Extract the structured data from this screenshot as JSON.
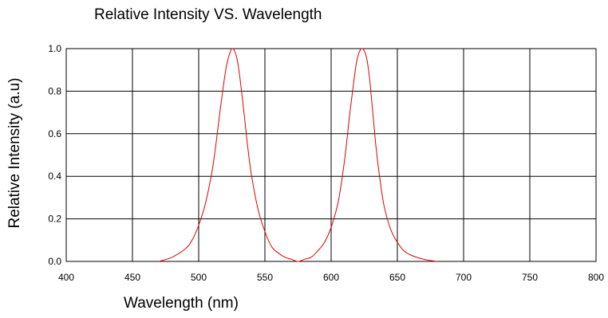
{
  "chart_data": {
    "type": "line",
    "title": "Relative Intensity VS. Wavelength",
    "xlabel": "Wavelength (nm)",
    "ylabel": "Relative Intensity (a.u)",
    "xlim": [
      400,
      800
    ],
    "ylim": [
      0,
      1.0
    ],
    "xticks": [
      "400",
      "450",
      "500",
      "550",
      "600",
      "650",
      "700",
      "750",
      "800"
    ],
    "yticks": [
      "0.0",
      "0.2",
      "0.4",
      "0.6",
      "0.8",
      "1.0"
    ],
    "grid": true,
    "line_color": "#e00000",
    "series": [
      {
        "x": [
          470,
          480,
          490,
          495,
          500,
          505,
          510,
          513,
          516,
          519,
          521,
          523,
          525,
          527,
          529,
          531,
          534,
          537,
          540,
          545,
          550,
          555,
          560,
          565,
          570,
          575,
          580,
          585,
          590,
          595,
          600,
          605,
          608,
          611,
          614,
          617,
          619,
          621,
          623,
          625,
          627,
          629,
          631,
          634,
          637,
          640,
          645,
          650,
          655,
          660,
          670,
          680
        ],
        "y": [
          0.0,
          0.02,
          0.06,
          0.1,
          0.17,
          0.27,
          0.42,
          0.55,
          0.7,
          0.84,
          0.92,
          0.97,
          1.0,
          0.99,
          0.95,
          0.87,
          0.71,
          0.54,
          0.4,
          0.24,
          0.14,
          0.07,
          0.04,
          0.02,
          0.01,
          0.0,
          0.01,
          0.02,
          0.05,
          0.09,
          0.16,
          0.27,
          0.38,
          0.52,
          0.69,
          0.84,
          0.93,
          0.98,
          1.0,
          0.99,
          0.95,
          0.86,
          0.73,
          0.53,
          0.38,
          0.26,
          0.15,
          0.09,
          0.05,
          0.03,
          0.01,
          0.0
        ]
      }
    ]
  }
}
